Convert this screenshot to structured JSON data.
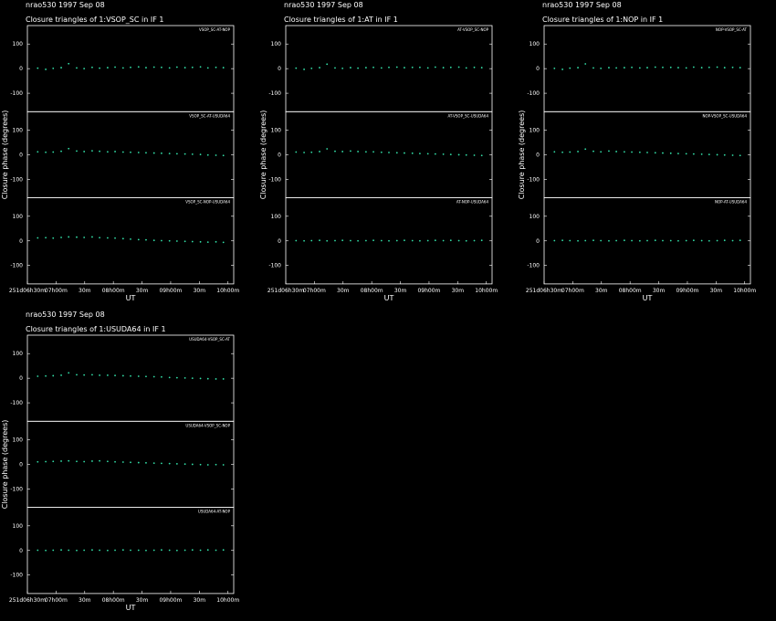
{
  "chart_data": [
    {
      "type": "scatter",
      "title": "nrao530  1997 Sep 08",
      "subtitle": "Closure triangles of 1:VSOP_SC in IF 1",
      "xlabel": "UT",
      "ylabel": "Closure phase  (degrees)",
      "color": "#33e0a8",
      "xlim": [
        6.5,
        10.1
      ],
      "xticks": [
        {
          "value": 6.5,
          "label": "251d06h30m"
        },
        {
          "value": 7,
          "label": "07h00m"
        },
        {
          "value": 7.5,
          "label": "30m"
        },
        {
          "value": 8,
          "label": "08h00m"
        },
        {
          "value": 8.5,
          "label": "30m"
        },
        {
          "value": 9,
          "label": "09h00m"
        },
        {
          "value": 9.5,
          "label": "30m"
        },
        {
          "value": 10,
          "label": "10h00m"
        }
      ],
      "ylim": [
        -175,
        175
      ],
      "yticks": [
        -100,
        0,
        100
      ],
      "x": [
        6.68,
        6.82,
        6.95,
        7.09,
        7.22,
        7.36,
        7.49,
        7.63,
        7.76,
        7.9,
        8.03,
        8.17,
        8.3,
        8.44,
        8.57,
        8.71,
        8.84,
        8.98,
        9.11,
        9.25,
        9.38,
        9.52,
        9.65,
        9.79,
        9.92
      ],
      "series": [
        {
          "name": "VSOP_SC-AT-NOP",
          "values": [
            2,
            -3,
            1,
            4,
            20,
            3,
            0,
            5,
            2,
            4,
            6,
            3,
            5,
            7,
            4,
            6,
            5,
            3,
            6,
            4,
            5,
            7,
            3,
            5,
            4
          ]
        },
        {
          "name": "VSOP_SC-AT-USUDA64",
          "values": [
            12,
            10,
            11,
            14,
            25,
            15,
            13,
            16,
            14,
            12,
            13,
            11,
            10,
            9,
            8,
            7,
            6,
            5,
            4,
            3,
            2,
            1,
            -1,
            -2,
            -3
          ]
        },
        {
          "name": "VSOP_SC-NOP-USUDA64",
          "values": [
            12,
            13,
            11,
            14,
            16,
            15,
            14,
            16,
            13,
            12,
            11,
            9,
            7,
            5,
            4,
            2,
            1,
            0,
            -1,
            -2,
            -3,
            -4,
            -5,
            -4,
            -6
          ]
        }
      ]
    },
    {
      "type": "scatter",
      "title": "nrao530  1997 Sep 08",
      "subtitle": "Closure triangles of 1:AT in IF 1",
      "xlabel": "UT",
      "ylabel": "Closure phase  (degrees)",
      "color": "#33e0a8",
      "xlim": [
        6.5,
        10.1
      ],
      "xticks": [
        {
          "value": 6.5,
          "label": "251d06h30m"
        },
        {
          "value": 7,
          "label": "07h00m"
        },
        {
          "value": 7.5,
          "label": "30m"
        },
        {
          "value": 8,
          "label": "08h00m"
        },
        {
          "value": 8.5,
          "label": "30m"
        },
        {
          "value": 9,
          "label": "09h00m"
        },
        {
          "value": 9.5,
          "label": "30m"
        },
        {
          "value": 10,
          "label": "10h00m"
        }
      ],
      "ylim": [
        -175,
        175
      ],
      "yticks": [
        -100,
        0,
        100
      ],
      "x": [
        6.68,
        6.82,
        6.95,
        7.09,
        7.22,
        7.36,
        7.49,
        7.63,
        7.76,
        7.9,
        8.03,
        8.17,
        8.3,
        8.44,
        8.57,
        8.71,
        8.84,
        8.98,
        9.11,
        9.25,
        9.38,
        9.52,
        9.65,
        9.79,
        9.92
      ],
      "series": [
        {
          "name": "AT-VSOP_SC-NOP",
          "values": [
            2,
            -3,
            1,
            4,
            18,
            3,
            1,
            4,
            2,
            4,
            5,
            3,
            5,
            6,
            4,
            5,
            5,
            3,
            6,
            4,
            5,
            6,
            3,
            5,
            4
          ]
        },
        {
          "name": "AT-VSOP_SC-USUDA64",
          "values": [
            11,
            9,
            10,
            13,
            24,
            14,
            13,
            15,
            13,
            12,
            12,
            10,
            9,
            8,
            7,
            6,
            5,
            4,
            3,
            2,
            1,
            0,
            -1,
            -2,
            -3
          ]
        },
        {
          "name": "AT-NOP-USUDA64",
          "values": [
            1,
            0,
            1,
            2,
            0,
            1,
            2,
            1,
            0,
            1,
            2,
            1,
            0,
            1,
            2,
            1,
            0,
            1,
            2,
            1,
            2,
            1,
            0,
            1,
            2
          ]
        }
      ]
    },
    {
      "type": "scatter",
      "title": "nrao530  1997 Sep 08",
      "subtitle": "Closure triangles of 1:NOP in IF 1",
      "xlabel": "UT",
      "ylabel": "Closure phase  (degrees)",
      "color": "#33e0a8",
      "xlim": [
        6.5,
        10.1
      ],
      "xticks": [
        {
          "value": 6.5,
          "label": "251d06h30m"
        },
        {
          "value": 7,
          "label": "07h00m"
        },
        {
          "value": 7.5,
          "label": "30m"
        },
        {
          "value": 8,
          "label": "08h00m"
        },
        {
          "value": 8.5,
          "label": "30m"
        },
        {
          "value": 9,
          "label": "09h00m"
        },
        {
          "value": 9.5,
          "label": "30m"
        },
        {
          "value": 10,
          "label": "10h00m"
        }
      ],
      "ylim": [
        -175,
        175
      ],
      "yticks": [
        -100,
        0,
        100
      ],
      "x": [
        6.68,
        6.82,
        6.95,
        7.09,
        7.22,
        7.36,
        7.49,
        7.63,
        7.76,
        7.9,
        8.03,
        8.17,
        8.3,
        8.44,
        8.57,
        8.71,
        8.84,
        8.98,
        9.11,
        9.25,
        9.38,
        9.52,
        9.65,
        9.79,
        9.92
      ],
      "series": [
        {
          "name": "NOP-VSOP_SC-AT",
          "values": [
            1,
            -3,
            2,
            4,
            19,
            3,
            1,
            4,
            3,
            4,
            5,
            3,
            4,
            6,
            5,
            5,
            4,
            3,
            6,
            4,
            5,
            6,
            4,
            5,
            4
          ]
        },
        {
          "name": "NOP-VSOP_SC-USUDA64",
          "values": [
            12,
            10,
            11,
            13,
            23,
            14,
            12,
            15,
            13,
            12,
            11,
            10,
            9,
            8,
            7,
            6,
            5,
            4,
            3,
            2,
            1,
            0,
            -1,
            -2,
            -3
          ]
        },
        {
          "name": "NOP-AT-USUDA64",
          "values": [
            1,
            2,
            1,
            0,
            1,
            2,
            1,
            0,
            1,
            2,
            1,
            0,
            1,
            2,
            1,
            1,
            0,
            1,
            2,
            1,
            0,
            1,
            2,
            1,
            2
          ]
        }
      ]
    },
    {
      "type": "scatter",
      "title": "nrao530  1997 Sep 08",
      "subtitle": "Closure triangles of 1:USUDA64 in IF 1",
      "xlabel": "UT",
      "ylabel": "Closure phase  (degrees)",
      "color": "#33e0a8",
      "xlim": [
        6.5,
        10.1
      ],
      "xticks": [
        {
          "value": 6.5,
          "label": "251d06h30m"
        },
        {
          "value": 7,
          "label": "07h00m"
        },
        {
          "value": 7.5,
          "label": "30m"
        },
        {
          "value": 8,
          "label": "08h00m"
        },
        {
          "value": 8.5,
          "label": "30m"
        },
        {
          "value": 9,
          "label": "09h00m"
        },
        {
          "value": 9.5,
          "label": "30m"
        },
        {
          "value": 10,
          "label": "10h00m"
        }
      ],
      "ylim": [
        -175,
        175
      ],
      "yticks": [
        -100,
        0,
        100
      ],
      "x": [
        6.68,
        6.82,
        6.95,
        7.09,
        7.22,
        7.36,
        7.49,
        7.63,
        7.76,
        7.9,
        8.03,
        8.17,
        8.3,
        8.44,
        8.57,
        8.71,
        8.84,
        8.98,
        9.11,
        9.25,
        9.38,
        9.52,
        9.65,
        9.79,
        9.92
      ],
      "series": [
        {
          "name": "USUDA64-VSOP_SC-AT",
          "values": [
            8,
            9,
            10,
            12,
            22,
            14,
            13,
            14,
            12,
            12,
            11,
            10,
            9,
            8,
            7,
            6,
            5,
            3,
            2,
            1,
            0,
            -1,
            -2,
            -3,
            -3
          ]
        },
        {
          "name": "USUDA64-VSOP_SC-NOP",
          "values": [
            10,
            11,
            12,
            13,
            14,
            12,
            11,
            13,
            14,
            12,
            10,
            9,
            8,
            7,
            6,
            5,
            4,
            3,
            2,
            1,
            0,
            -1,
            -2,
            -1,
            -2
          ]
        },
        {
          "name": "USUDA64-AT-NOP",
          "values": [
            1,
            0,
            1,
            2,
            1,
            0,
            1,
            2,
            1,
            0,
            1,
            2,
            1,
            1,
            0,
            1,
            2,
            1,
            0,
            1,
            2,
            1,
            2,
            1,
            2
          ]
        }
      ]
    }
  ]
}
